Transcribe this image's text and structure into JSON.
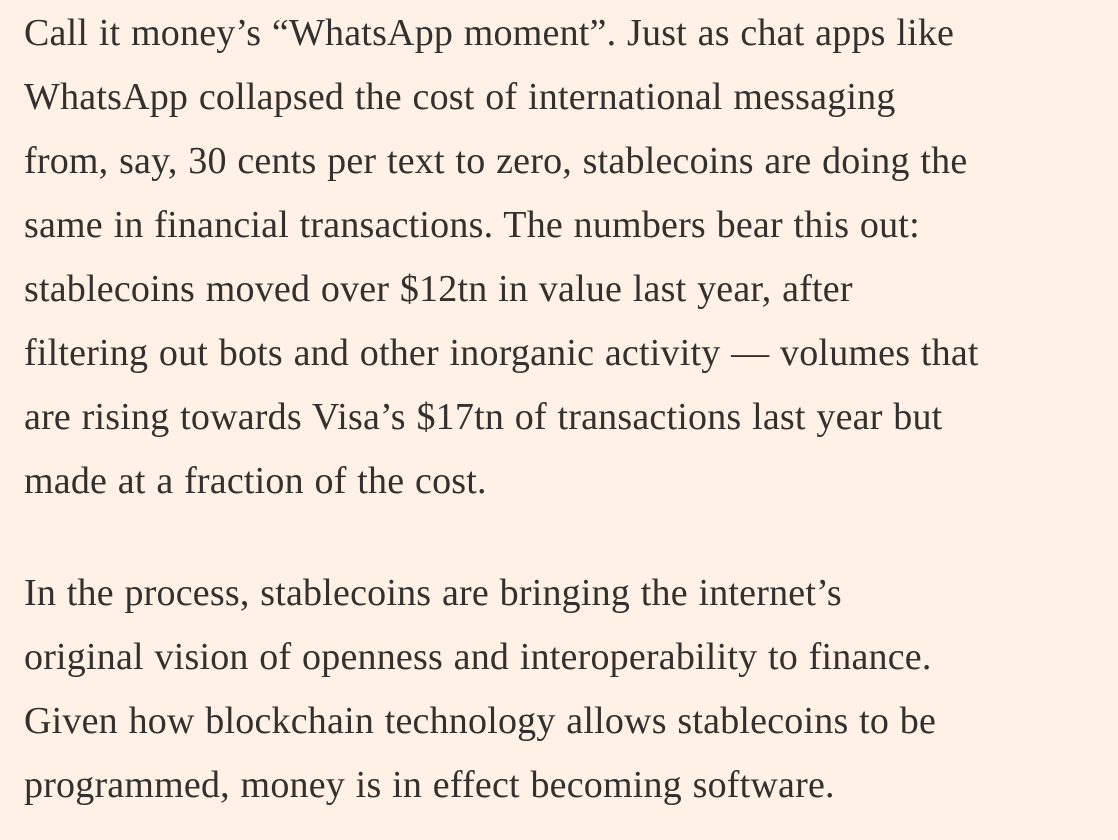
{
  "page": {
    "background_color": "#FFF1E5",
    "text_color": "#33302E"
  },
  "article": {
    "paragraphs": [
      {
        "lines": [
          "Call it money’s “WhatsApp moment”. Just as chat apps like",
          "WhatsApp collapsed the cost of international messaging",
          "from, say, 30 cents per text to zero, stablecoins are doing the",
          "same in financial transactions. The numbers bear this out:",
          "stablecoins moved over $12tn in value last year, after",
          "filtering out bots and other inorganic activity — volumes that",
          "are rising towards Visa’s $17tn of transactions last year but",
          "made at a fraction of the cost."
        ]
      },
      {
        "lines": [
          "In the process, stablecoins are bringing the internet’s",
          "original vision of openness and interoperability to finance.",
          "Given how blockchain technology allows stablecoins to be",
          "programmed, money is in effect becoming software."
        ]
      }
    ]
  }
}
